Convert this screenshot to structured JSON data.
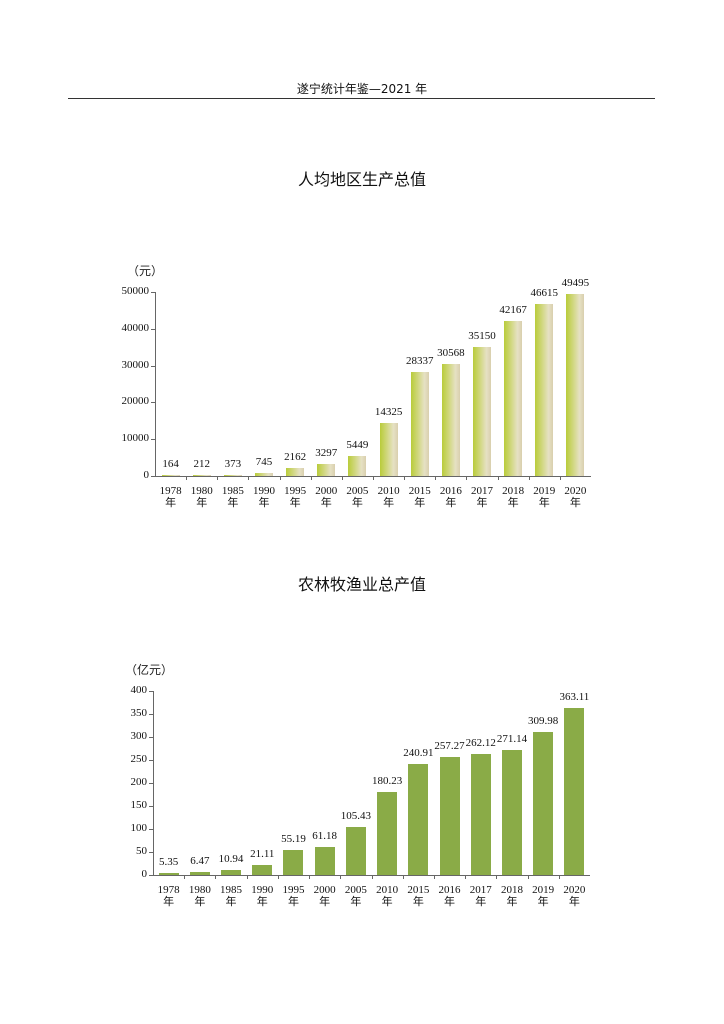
{
  "header": {
    "text": "遂宁统计年鉴—2021 年"
  },
  "chart_data": [
    {
      "type": "bar",
      "title": "人均地区生产总值",
      "ylabel": "（元）",
      "xlabel": "",
      "ylim": [
        0,
        50000
      ],
      "yticks": [
        0,
        10000,
        20000,
        30000,
        40000,
        50000
      ],
      "grid": false,
      "legend": null,
      "categories": [
        "1978年",
        "1980年",
        "1985年",
        "1990年",
        "1995年",
        "2000年",
        "2005年",
        "2010年",
        "2015年",
        "2016年",
        "2017年",
        "2018年",
        "2019年",
        "2020年"
      ],
      "values": [
        164,
        212,
        373,
        745,
        2162,
        3297,
        5449,
        14325,
        28337,
        30568,
        35150,
        42167,
        46615,
        49495
      ],
      "bar_color": "gradient #b9cc3a → #e6e1c4"
    },
    {
      "type": "bar",
      "title": "农林牧渔业总产值",
      "ylabel": "（亿元）",
      "xlabel": "",
      "ylim": [
        0,
        400
      ],
      "yticks": [
        0,
        50,
        100,
        150,
        200,
        250,
        300,
        350,
        400
      ],
      "grid": false,
      "legend": null,
      "categories": [
        "1978年",
        "1980年",
        "1985年",
        "1990年",
        "1995年",
        "2000年",
        "2005年",
        "2010年",
        "2015年",
        "2016年",
        "2017年",
        "2018年",
        "2019年",
        "2020年"
      ],
      "values": [
        5.35,
        6.47,
        10.94,
        21.11,
        55.19,
        61.18,
        105.43,
        180.23,
        240.91,
        257.27,
        262.12,
        271.14,
        309.98,
        363.11
      ],
      "bar_color": "#8aab47"
    }
  ],
  "year_suffix": "年"
}
